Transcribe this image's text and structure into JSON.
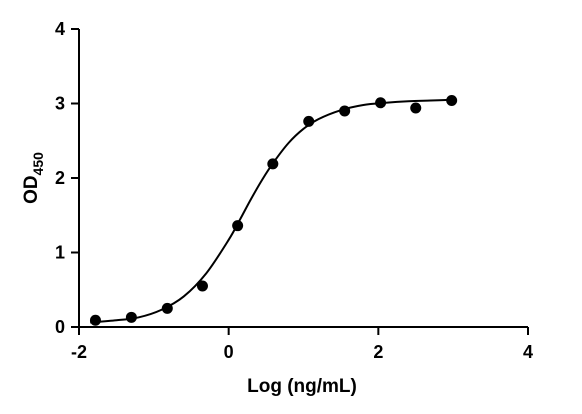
{
  "chart_data": {
    "type": "scatter",
    "title": "",
    "xlabel": "Log (ng/mL)",
    "ylabel": {
      "main": "OD",
      "subscript": "450"
    },
    "xlim": [
      -2,
      4
    ],
    "ylim": [
      0,
      4
    ],
    "x_ticks": [
      -2,
      0,
      2,
      4
    ],
    "x_tick_labels": [
      "-2",
      "0",
      "2",
      "4"
    ],
    "y_ticks": [
      0,
      1,
      2,
      3,
      4
    ],
    "y_tick_labels": [
      "0",
      "1",
      "2",
      "3",
      "4"
    ],
    "grid": false,
    "legend": "none",
    "series": [
      {
        "marker": "circle",
        "color": "#000000",
        "x": [
          -1.78,
          -1.3,
          -0.82,
          -0.35,
          0.12,
          0.59,
          1.07,
          1.55,
          2.03,
          2.5,
          2.98
        ],
        "y": [
          0.09,
          0.13,
          0.25,
          0.55,
          1.36,
          2.19,
          2.76,
          2.9,
          3.01,
          2.94,
          3.04
        ]
      }
    ],
    "fit_curve": {
      "type": "sigmoid",
      "color": "#000000",
      "x": [
        -1.85,
        -1.5,
        -1.2,
        -0.9,
        -0.6,
        -0.3,
        0.0,
        0.15,
        0.3,
        0.45,
        0.6,
        0.8,
        1.0,
        1.2,
        1.5,
        1.8,
        2.1,
        2.4,
        2.7,
        3.0
      ],
      "y": [
        0.06,
        0.09,
        0.13,
        0.23,
        0.41,
        0.72,
        1.17,
        1.44,
        1.72,
        1.98,
        2.21,
        2.47,
        2.66,
        2.79,
        2.91,
        2.98,
        3.01,
        3.03,
        3.04,
        3.05
      ]
    }
  }
}
